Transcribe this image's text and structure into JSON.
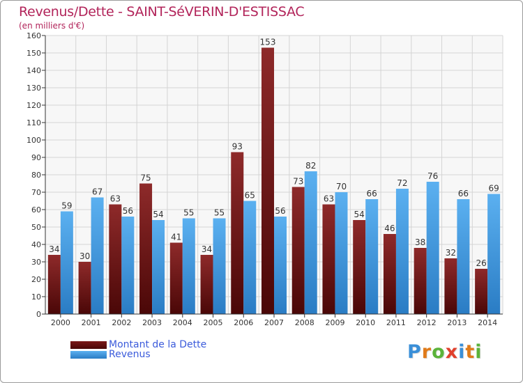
{
  "chart_data": {
    "type": "bar",
    "title": "Revenus/Dette - SAINT-SéVERIN-D'ESTISSAC",
    "subtitle": "(en milliers d'€)",
    "xlabel": "",
    "ylabel": "",
    "ylim": [
      0,
      160
    ],
    "ytick_step": 10,
    "grid": true,
    "categories": [
      "2000",
      "2001",
      "2002",
      "2003",
      "2004",
      "2005",
      "2006",
      "2007",
      "2008",
      "2009",
      "2010",
      "2011",
      "2012",
      "2013",
      "2014"
    ],
    "series": [
      {
        "name": "Montant de la Dette",
        "color": "#7a1818",
        "values": [
          34,
          30,
          63,
          75,
          41,
          34,
          93,
          153,
          73,
          63,
          54,
          46,
          38,
          32,
          26
        ]
      },
      {
        "name": "Revenus",
        "color": "#4aa3e8",
        "values": [
          59,
          67,
          56,
          54,
          55,
          55,
          65,
          56,
          82,
          70,
          66,
          72,
          76,
          66,
          69
        ]
      }
    ],
    "legend_position": "bottom-left"
  },
  "logo": {
    "text": "Proxiti",
    "colors": [
      "#3a8fd8",
      "#e07b1a",
      "#5bb33a",
      "#e0402c",
      "#3a8fd8",
      "#e07b1a",
      "#5bb33a"
    ]
  }
}
